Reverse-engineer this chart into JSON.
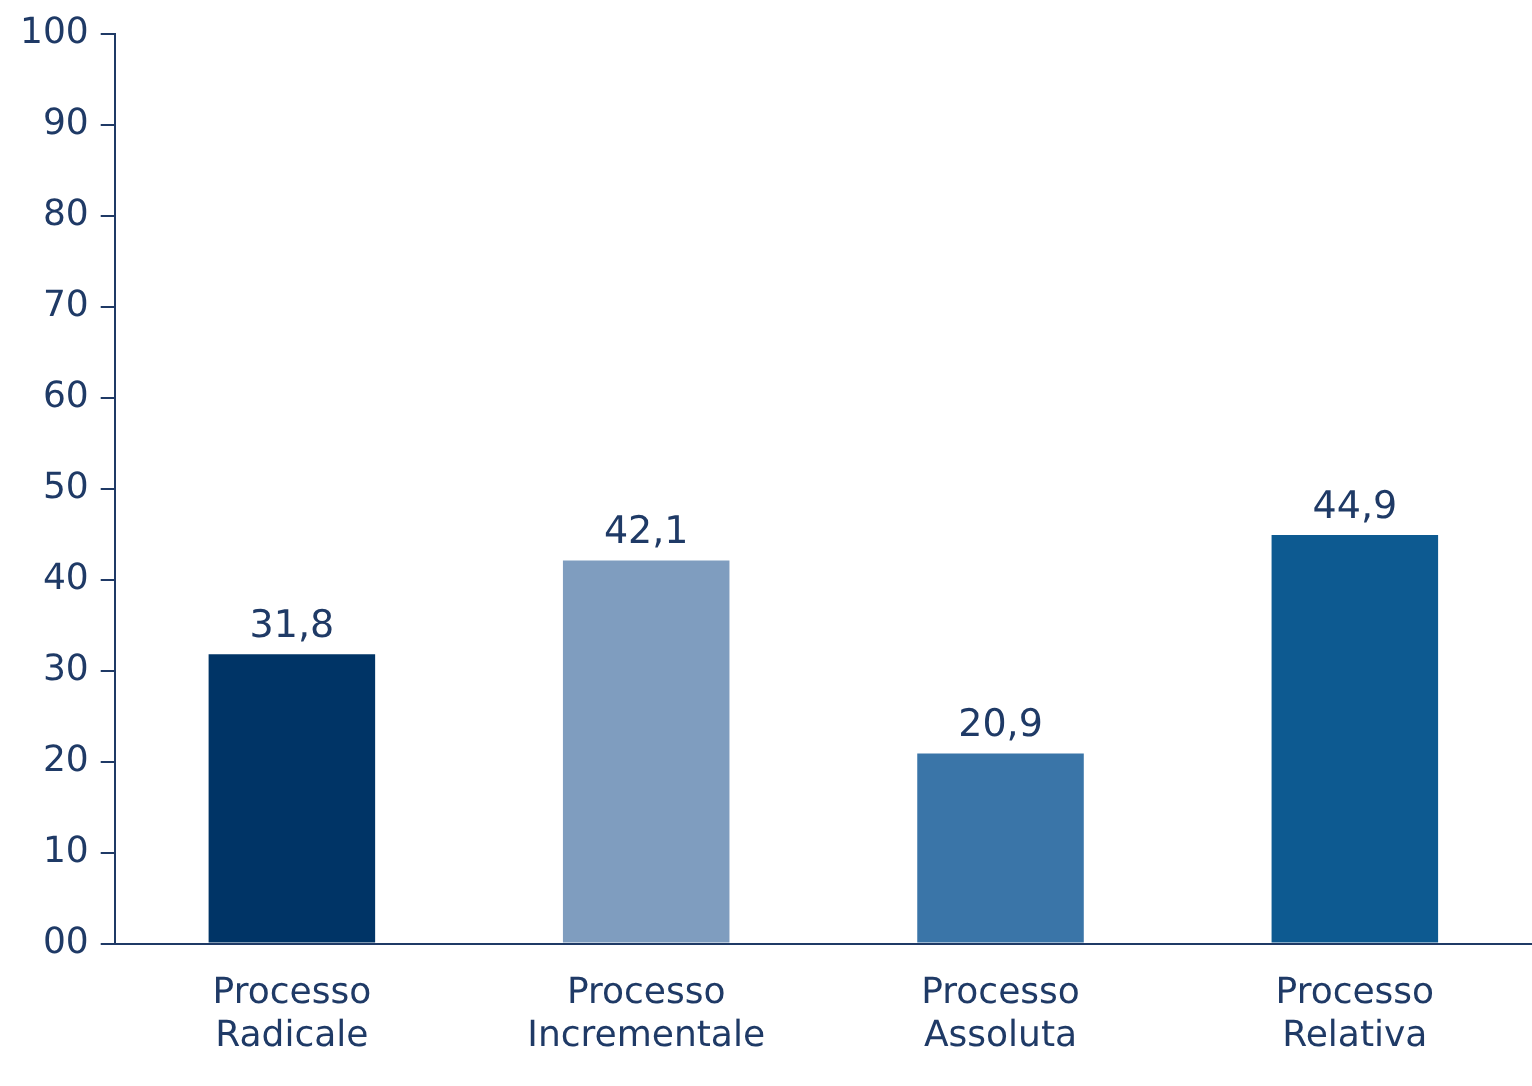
{
  "chart_data": {
    "type": "bar",
    "categories": [
      "Processo Radicale",
      "Processo Incrementale",
      "Processo Assoluta",
      "Processo Relativa"
    ],
    "values": [
      31.8,
      42.1,
      20.9,
      44.9
    ],
    "colors": [
      "#003466",
      "#7f9dbf",
      "#3a75a8",
      "#0d5a91"
    ],
    "value_labels": [
      "31,8",
      "42,1",
      "20,9",
      "44,9"
    ],
    "ylim": [
      0,
      100
    ],
    "yticks": [
      {
        "value": 0,
        "label": "00"
      },
      10,
      20,
      30,
      40,
      50,
      60,
      70,
      80,
      90,
      100
    ],
    "grid": false,
    "legend": false
  }
}
